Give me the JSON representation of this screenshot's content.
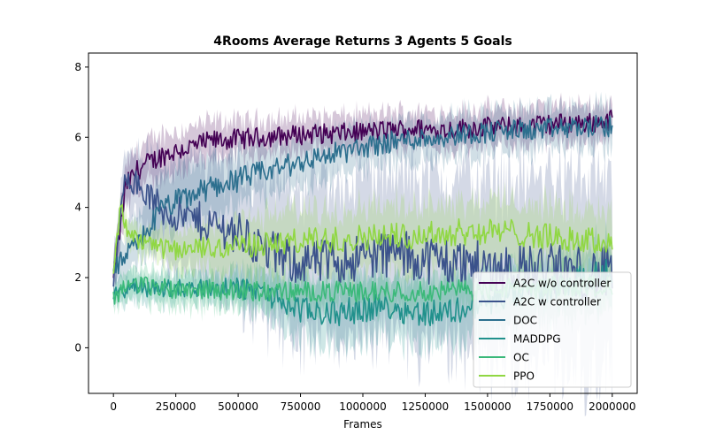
{
  "chart_data": {
    "type": "line",
    "title": "4Rooms Average Returns 3 Agents 5 Goals",
    "xlabel": "Frames",
    "ylabel": "",
    "xlim": [
      -100000,
      2100000
    ],
    "ylim": [
      -1.3,
      8.4
    ],
    "xticks": [
      0,
      250000,
      500000,
      750000,
      1000000,
      1250000,
      1500000,
      1750000,
      2000000
    ],
    "xtick_labels": [
      "0",
      "250000",
      "500000",
      "750000",
      "1000000",
      "1250000",
      "1500000",
      "1750000",
      "2000000"
    ],
    "yticks": [
      0,
      2,
      4,
      6,
      8
    ],
    "ytick_labels": [
      "0",
      "2",
      "4",
      "6",
      "8"
    ],
    "legend_position": "lower-right",
    "grid": false,
    "series": [
      {
        "name": "A2C w/o controller",
        "color": "#440154",
        "x": [
          0,
          50000,
          100000,
          200000,
          300000,
          400000,
          500000,
          600000,
          700000,
          800000,
          900000,
          1000000,
          1100000,
          1200000,
          1300000,
          1400000,
          1500000,
          1600000,
          1700000,
          1800000,
          1900000,
          2000000
        ],
        "y": [
          1.9,
          4.6,
          5.1,
          5.5,
          5.7,
          5.9,
          5.95,
          6.0,
          6.05,
          6.1,
          6.1,
          6.15,
          6.2,
          6.25,
          6.2,
          6.25,
          6.3,
          6.3,
          6.35,
          6.4,
          6.4,
          6.5
        ],
        "band": [
          0.5,
          0.6,
          0.6,
          0.6,
          0.55,
          0.55,
          0.5,
          0.5,
          0.5,
          0.5,
          0.5,
          0.5,
          0.5,
          0.5,
          0.5,
          0.5,
          0.5,
          0.5,
          0.5,
          0.5,
          0.5,
          0.5
        ]
      },
      {
        "name": "A2C w controller",
        "color": "#3b528b",
        "x": [
          0,
          50000,
          100000,
          200000,
          300000,
          400000,
          500000,
          600000,
          700000,
          800000,
          900000,
          1000000,
          1100000,
          1200000,
          1300000,
          1400000,
          1500000,
          1600000,
          1700000,
          1800000,
          1900000,
          2000000
        ],
        "y": [
          1.9,
          5.0,
          4.6,
          3.9,
          3.7,
          3.5,
          3.3,
          2.8,
          2.5,
          2.4,
          2.5,
          2.6,
          2.7,
          2.6,
          2.5,
          2.4,
          2.3,
          2.3,
          2.2,
          2.2,
          2.1,
          2.1
        ],
        "band": [
          0.6,
          0.8,
          1.0,
          1.4,
          1.6,
          1.8,
          1.9,
          2.0,
          2.1,
          2.2,
          2.2,
          2.3,
          2.3,
          2.4,
          2.4,
          2.5,
          2.5,
          2.6,
          2.6,
          2.7,
          2.7,
          2.8
        ]
      },
      {
        "name": "DOC",
        "color": "#2c6f8e",
        "x": [
          0,
          50000,
          100000,
          200000,
          300000,
          400000,
          500000,
          600000,
          700000,
          800000,
          900000,
          1000000,
          1100000,
          1200000,
          1300000,
          1400000,
          1500000,
          1600000,
          1700000,
          1800000,
          1900000,
          2000000
        ],
        "y": [
          2.2,
          2.6,
          3.0,
          4.0,
          4.3,
          4.6,
          4.8,
          5.0,
          5.2,
          5.4,
          5.55,
          5.7,
          5.85,
          5.95,
          6.0,
          6.1,
          6.15,
          6.2,
          6.2,
          6.25,
          6.3,
          6.3
        ],
        "band": [
          0.4,
          0.6,
          0.7,
          0.8,
          0.8,
          0.8,
          0.8,
          0.7,
          0.7,
          0.7,
          0.7,
          0.6,
          0.6,
          0.6,
          0.6,
          0.6,
          0.6,
          0.6,
          0.6,
          0.6,
          0.6,
          0.6
        ]
      },
      {
        "name": "MADDPG",
        "color": "#21918c",
        "x": [
          0,
          50000,
          100000,
          200000,
          300000,
          400000,
          500000,
          600000,
          700000,
          800000,
          900000,
          1000000,
          1100000,
          1200000,
          1300000,
          1400000,
          1500000,
          1600000,
          1700000,
          1800000,
          1900000,
          2000000
        ],
        "y": [
          1.5,
          1.7,
          1.7,
          1.7,
          1.7,
          1.7,
          1.7,
          1.6,
          1.2,
          1.0,
          1.0,
          1.1,
          1.2,
          1.0,
          1.0,
          1.1,
          1.3,
          1.5,
          1.6,
          1.8,
          2.0,
          2.2
        ],
        "band": [
          0.3,
          0.4,
          0.4,
          0.4,
          0.4,
          0.4,
          0.5,
          0.6,
          0.8,
          0.9,
          0.9,
          0.9,
          0.9,
          0.9,
          0.9,
          0.9,
          0.9,
          0.9,
          0.9,
          0.9,
          0.9,
          0.9
        ]
      },
      {
        "name": "OC",
        "color": "#3bb97a",
        "x": [
          0,
          50000,
          100000,
          200000,
          300000,
          400000,
          500000,
          600000,
          700000,
          800000,
          900000,
          1000000,
          1100000,
          1200000,
          1300000,
          1400000,
          1500000,
          1600000,
          1700000,
          1800000,
          1900000,
          2000000
        ],
        "y": [
          1.4,
          1.8,
          1.8,
          1.7,
          1.7,
          1.65,
          1.65,
          1.6,
          1.6,
          1.6,
          1.6,
          1.6,
          1.6,
          1.6,
          1.6,
          1.65,
          1.65,
          1.7,
          1.7,
          1.75,
          1.75,
          1.8
        ],
        "band": [
          0.3,
          0.4,
          0.4,
          0.5,
          0.5,
          0.5,
          0.5,
          0.5,
          0.5,
          0.5,
          0.5,
          0.5,
          0.5,
          0.5,
          0.5,
          0.5,
          0.5,
          0.5,
          0.5,
          0.5,
          0.5,
          0.5
        ]
      },
      {
        "name": "PPO",
        "color": "#90d743",
        "x": [
          0,
          30000,
          50000,
          100000,
          200000,
          300000,
          400000,
          500000,
          600000,
          700000,
          800000,
          900000,
          1000000,
          1100000,
          1200000,
          1300000,
          1400000,
          1500000,
          1600000,
          1700000,
          1800000,
          1900000,
          2000000
        ],
        "y": [
          2.0,
          4.1,
          3.4,
          3.0,
          2.8,
          2.8,
          2.85,
          2.9,
          2.95,
          3.0,
          3.05,
          3.1,
          3.15,
          3.2,
          3.2,
          3.25,
          3.3,
          3.3,
          3.3,
          3.2,
          3.1,
          3.05,
          3.0
        ],
        "band": [
          0.3,
          0.3,
          0.4,
          0.4,
          0.5,
          0.6,
          0.7,
          0.8,
          0.8,
          0.9,
          0.9,
          0.9,
          0.9,
          0.9,
          0.9,
          0.9,
          0.9,
          0.9,
          0.9,
          0.9,
          0.9,
          0.9,
          0.9
        ]
      }
    ]
  }
}
